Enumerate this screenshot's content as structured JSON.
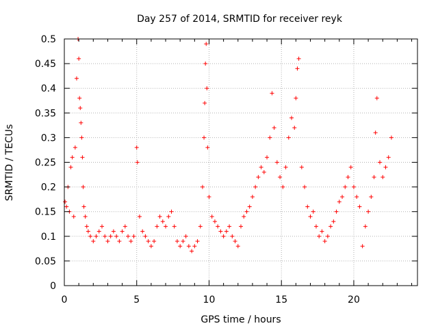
{
  "chart_data": {
    "type": "scatter",
    "title": "Day 257 of 2014, SRMTID for receiver reyk",
    "xlabel": "GPS time / hours",
    "ylabel": "SRMTID / TECUs",
    "xlim": [
      0,
      24.4
    ],
    "ylim": [
      0,
      0.5
    ],
    "xticks": [
      0,
      5,
      10,
      15,
      20
    ],
    "yticks": [
      0,
      0.05,
      0.1,
      0.15,
      0.2,
      0.25,
      0.3,
      0.35,
      0.4,
      0.45,
      0.5
    ],
    "xtick_labels": [
      "0",
      "5",
      "10",
      "15",
      "20"
    ],
    "ytick_labels": [
      "0",
      "0.05",
      "0.1",
      "0.15",
      "0.2",
      "0.25",
      "0.3",
      "0.35",
      "0.4",
      "0.45",
      "0.5"
    ],
    "grid": true,
    "marker": "+",
    "series": [
      {
        "name": "reyk",
        "color": "#ff0000",
        "x": [
          0.05,
          0.15,
          0.25,
          0.35,
          0.45,
          0.55,
          0.65,
          0.75,
          0.85,
          0.95,
          1.0,
          1.05,
          1.1,
          1.15,
          1.2,
          1.25,
          1.3,
          1.35,
          1.45,
          1.55,
          1.65,
          1.8,
          2.0,
          2.2,
          2.4,
          2.6,
          2.8,
          3.0,
          3.2,
          3.4,
          3.6,
          3.8,
          4.0,
          4.2,
          4.4,
          4.6,
          4.8,
          5.0,
          5.05,
          5.2,
          5.4,
          5.6,
          5.8,
          6.0,
          6.2,
          6.4,
          6.6,
          6.8,
          7.0,
          7.2,
          7.4,
          7.6,
          7.8,
          8.0,
          8.2,
          8.4,
          8.6,
          8.8,
          9.0,
          9.2,
          9.4,
          9.55,
          9.65,
          9.7,
          9.75,
          9.8,
          9.85,
          9.9,
          10.0,
          10.2,
          10.4,
          10.6,
          10.8,
          11.0,
          11.2,
          11.4,
          11.6,
          11.8,
          12.0,
          12.2,
          12.4,
          12.6,
          12.8,
          13.0,
          13.2,
          13.4,
          13.6,
          13.8,
          14.0,
          14.2,
          14.35,
          14.5,
          14.7,
          14.9,
          15.1,
          15.3,
          15.5,
          15.7,
          15.9,
          16.0,
          16.1,
          16.2,
          16.4,
          16.6,
          16.8,
          17.0,
          17.2,
          17.4,
          17.6,
          17.8,
          18.0,
          18.2,
          18.4,
          18.6,
          18.8,
          19.0,
          19.2,
          19.4,
          19.6,
          19.8,
          20.0,
          20.2,
          20.4,
          20.6,
          20.8,
          21.0,
          21.2,
          21.4,
          21.5,
          21.6,
          21.8,
          22.0,
          22.2,
          22.4,
          22.6
        ],
        "y": [
          0.17,
          0.16,
          0.2,
          0.15,
          0.24,
          0.26,
          0.14,
          0.28,
          0.42,
          0.5,
          0.46,
          0.38,
          0.36,
          0.33,
          0.3,
          0.26,
          0.2,
          0.16,
          0.14,
          0.12,
          0.11,
          0.1,
          0.09,
          0.1,
          0.11,
          0.12,
          0.1,
          0.09,
          0.1,
          0.11,
          0.1,
          0.09,
          0.11,
          0.12,
          0.1,
          0.09,
          0.1,
          0.28,
          0.25,
          0.14,
          0.11,
          0.1,
          0.09,
          0.08,
          0.09,
          0.12,
          0.14,
          0.13,
          0.12,
          0.14,
          0.15,
          0.12,
          0.09,
          0.08,
          0.09,
          0.1,
          0.08,
          0.07,
          0.08,
          0.09,
          0.12,
          0.2,
          0.3,
          0.37,
          0.45,
          0.49,
          0.4,
          0.28,
          0.18,
          0.14,
          0.13,
          0.12,
          0.11,
          0.1,
          0.11,
          0.12,
          0.1,
          0.09,
          0.08,
          0.12,
          0.14,
          0.15,
          0.16,
          0.18,
          0.2,
          0.22,
          0.24,
          0.23,
          0.26,
          0.3,
          0.39,
          0.32,
          0.25,
          0.22,
          0.2,
          0.24,
          0.3,
          0.34,
          0.32,
          0.38,
          0.44,
          0.46,
          0.24,
          0.2,
          0.16,
          0.14,
          0.15,
          0.12,
          0.1,
          0.11,
          0.09,
          0.1,
          0.12,
          0.13,
          0.15,
          0.17,
          0.18,
          0.2,
          0.22,
          0.24,
          0.2,
          0.18,
          0.16,
          0.08,
          0.12,
          0.15,
          0.18,
          0.22,
          0.31,
          0.38,
          0.25,
          0.22,
          0.24,
          0.26,
          0.3
        ]
      }
    ]
  }
}
